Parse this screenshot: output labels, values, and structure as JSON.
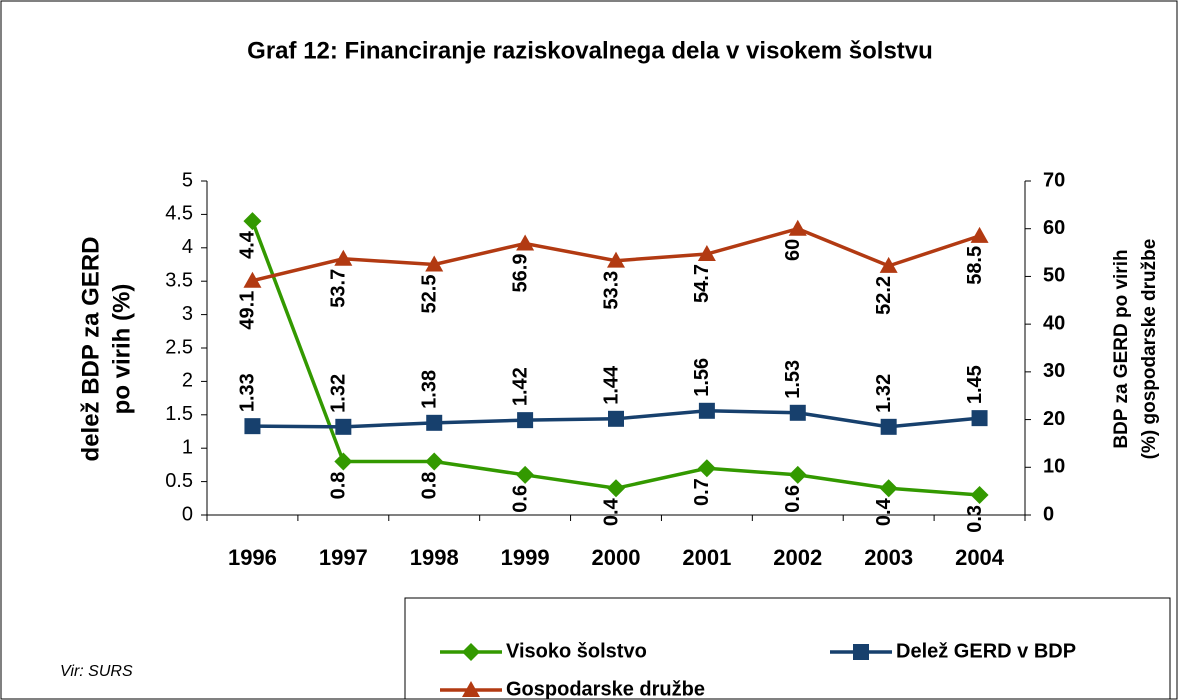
{
  "chart_data": {
    "type": "line",
    "title": "Graf 12: Financiranje raziskovalnega dela v visokem šolstvu",
    "ylabel": [
      "delež BDP za GERD",
      "po virih (%)"
    ],
    "y2label": [
      "BDP za GERD po virih",
      "(%)  gospodarske družbe"
    ],
    "source": "Vir: SURS",
    "categories": [
      "1996",
      "1997",
      "1998",
      "1999",
      "2000",
      "2001",
      "2002",
      "2003",
      "2004"
    ],
    "ylim": [
      0,
      5
    ],
    "yticks": [
      0,
      0.5,
      1,
      1.5,
      2,
      2.5,
      3,
      3.5,
      4,
      4.5,
      5
    ],
    "y2lim": [
      0,
      70
    ],
    "y2ticks": [
      0,
      10,
      20,
      30,
      40,
      50,
      60,
      70
    ],
    "series": [
      {
        "name": "Visoko šolstvo",
        "color": "#339900",
        "marker": "diamond",
        "label_position": "below",
        "values": [
          4.4,
          0.8,
          0.8,
          0.6,
          0.4,
          0.7,
          0.6,
          0.4,
          0.3
        ]
      },
      {
        "name": "Delež GERD v BDP",
        "color": "#17406d",
        "marker": "square",
        "label_position": "above",
        "values": [
          1.33,
          1.32,
          1.38,
          1.42,
          1.44,
          1.56,
          1.53,
          1.32,
          1.45
        ]
      },
      {
        "name": "Gospodarske družbe",
        "color": "#b23a12",
        "marker": "triangle",
        "label_position": "below",
        "axis": "y2",
        "values": [
          49.1,
          53.7,
          52.5,
          56.9,
          53.3,
          54.7,
          60,
          52.2,
          58.5
        ]
      }
    ]
  }
}
